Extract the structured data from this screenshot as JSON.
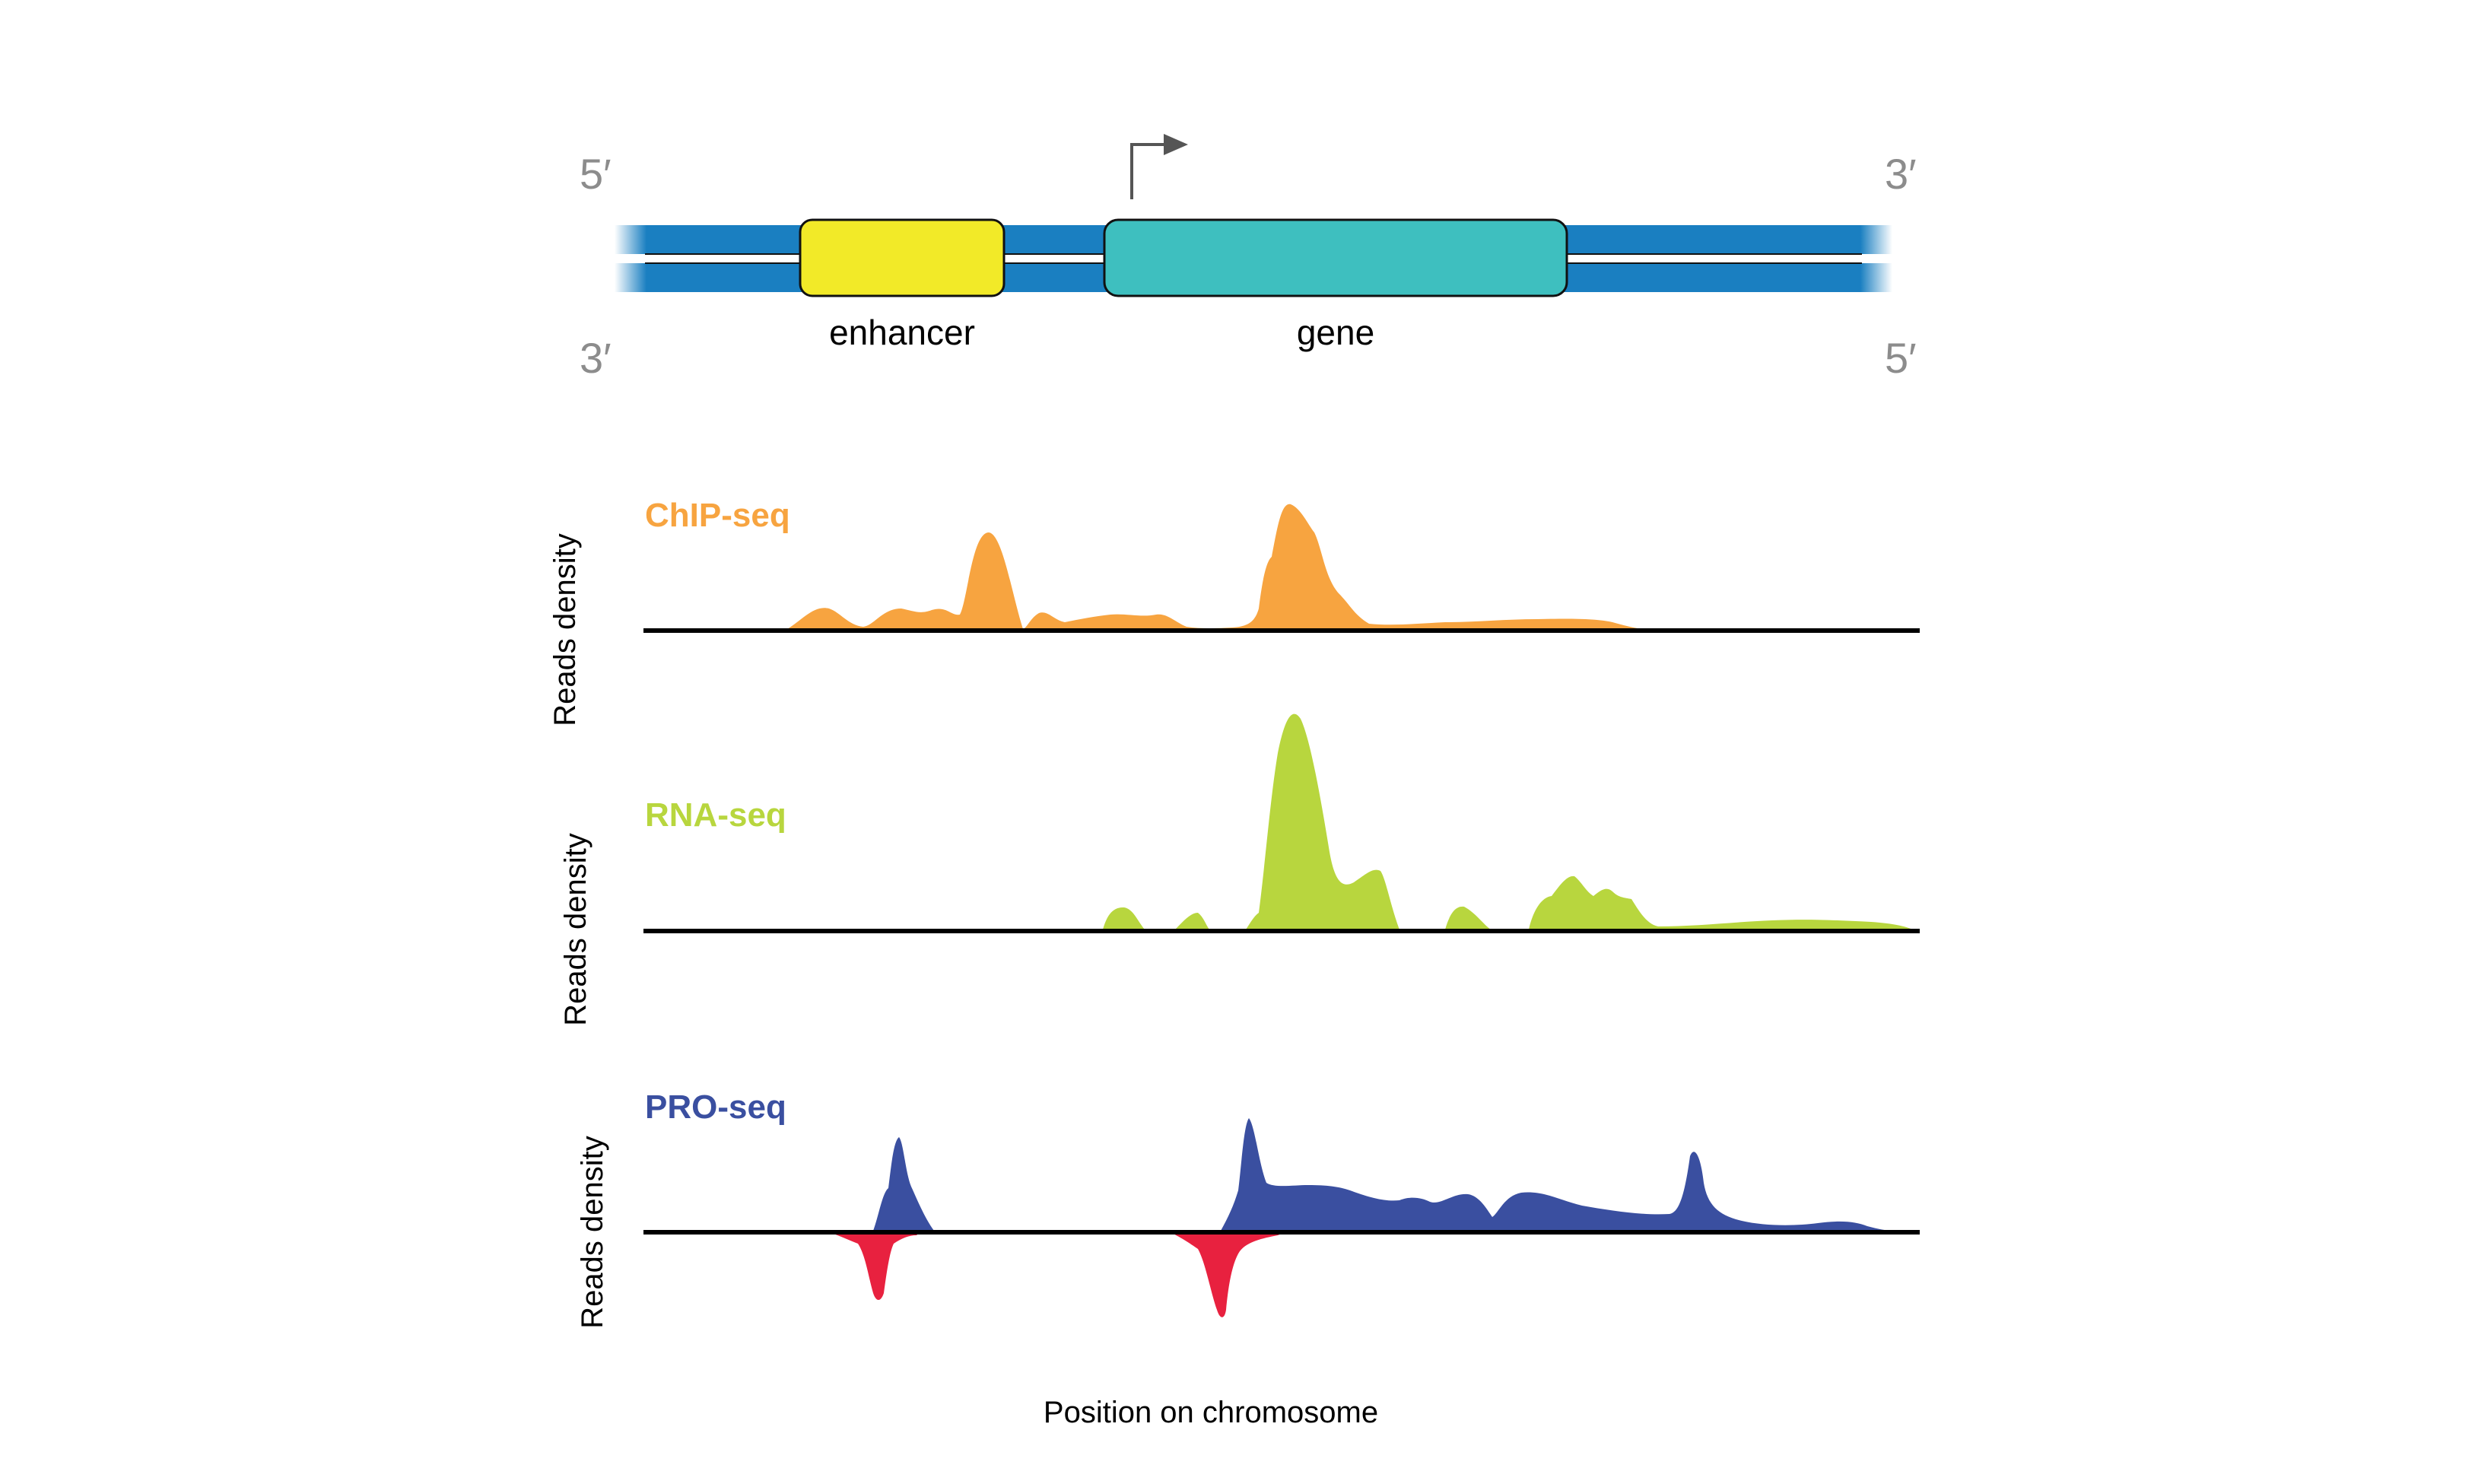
{
  "dna": {
    "top_left_end": "5′",
    "top_right_end": "3′",
    "bottom_left_end": "3′",
    "bottom_right_end": "5′",
    "enhancer_label": "enhancer",
    "gene_label": "gene",
    "colors": {
      "strand": "#1a7fc1",
      "enhancer": "#f2ea28",
      "gene": "#3ebfbf",
      "arrow": "#555555"
    }
  },
  "tracks": [
    {
      "title": "ChIP-seq",
      "ylabel": "Reads density",
      "color": "#f7a440"
    },
    {
      "title": "RNA-seq",
      "ylabel": "Reads density",
      "color": "#b8d63e"
    },
    {
      "title": "PRO-seq",
      "ylabel": "Reads density",
      "color": "#3a4fa0",
      "reverse_color": "#e8213f"
    }
  ],
  "xlabel": "Position on chromosome"
}
